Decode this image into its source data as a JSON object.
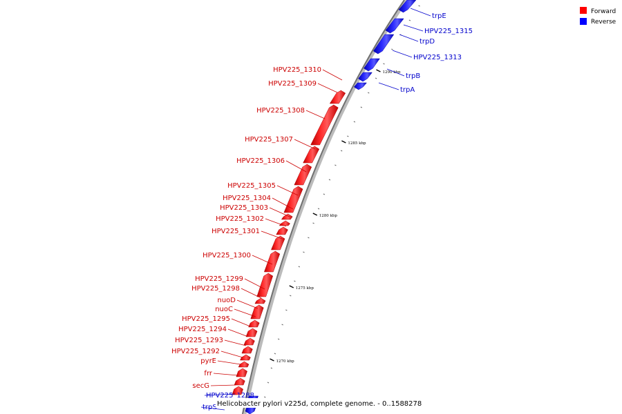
{
  "caption": "Helicobacter pylori v225d, complete genome. - 0..1588278",
  "legend": [
    {
      "label": "Forward",
      "color": "#ff0000"
    },
    {
      "label": "Reverse",
      "color": "#0000ff"
    }
  ],
  "ticks": [
    "1290 kbp",
    "1285 kbp",
    "1280 kbp",
    "1275 kbp",
    "1270 kbp"
  ],
  "genes": [
    {
      "name": "trpE",
      "strand": "reverse"
    },
    {
      "name": "HPV225_1315",
      "strand": "reverse"
    },
    {
      "name": "trpD",
      "strand": "reverse"
    },
    {
      "name": "HPV225_1313",
      "strand": "reverse"
    },
    {
      "name": "trpB",
      "strand": "reverse"
    },
    {
      "name": "trpA",
      "strand": "reverse"
    },
    {
      "name": "HPV225_1310",
      "strand": "forward"
    },
    {
      "name": "HPV225_1309",
      "strand": "forward"
    },
    {
      "name": "HPV225_1308",
      "strand": "forward"
    },
    {
      "name": "HPV225_1307",
      "strand": "forward"
    },
    {
      "name": "HPV225_1306",
      "strand": "forward"
    },
    {
      "name": "HPV225_1305",
      "strand": "forward"
    },
    {
      "name": "HPV225_1304",
      "strand": "forward"
    },
    {
      "name": "HPV225_1303",
      "strand": "forward"
    },
    {
      "name": "HPV225_1302",
      "strand": "forward"
    },
    {
      "name": "HPV225_1301",
      "strand": "forward"
    },
    {
      "name": "HPV225_1300",
      "strand": "forward"
    },
    {
      "name": "HPV225_1299",
      "strand": "forward"
    },
    {
      "name": "HPV225_1298",
      "strand": "forward"
    },
    {
      "name": "nuoD",
      "strand": "forward"
    },
    {
      "name": "nuoC",
      "strand": "forward"
    },
    {
      "name": "HPV225_1295",
      "strand": "forward"
    },
    {
      "name": "HPV225_1294",
      "strand": "forward"
    },
    {
      "name": "HPV225_1293",
      "strand": "forward"
    },
    {
      "name": "HPV225_1292",
      "strand": "forward"
    },
    {
      "name": "pyrE",
      "strand": "forward"
    },
    {
      "name": "frr",
      "strand": "forward"
    },
    {
      "name": "secG",
      "strand": "forward"
    },
    {
      "name": "HPV225_1288",
      "strand": "reverse"
    },
    {
      "name": "trpS",
      "strand": "reverse"
    }
  ]
}
